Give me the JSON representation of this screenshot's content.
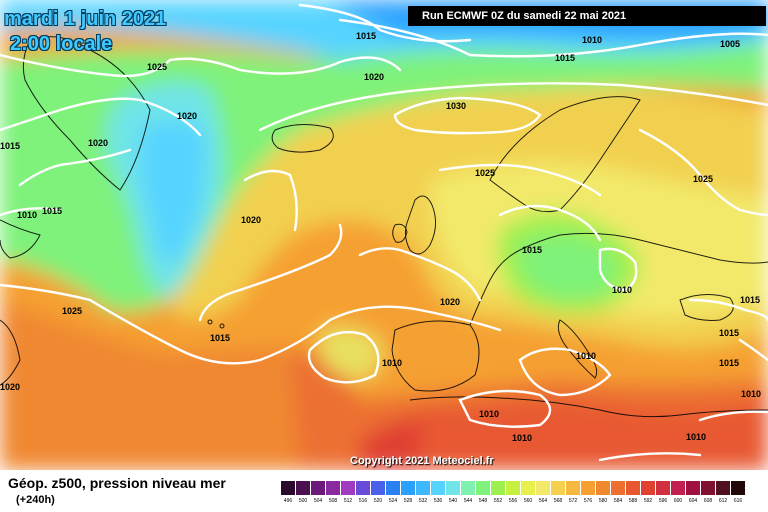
{
  "header": {
    "date": "mardi 1 juin 2021",
    "time": "2:00 locale",
    "run": "Run ECMWF 0Z du samedi 22 mai 2021"
  },
  "copyright": "Copyright 2021 Meteociel.fr",
  "footer": {
    "title": "Géop. z500, pression niveau mer",
    "subtitle": "(+240h)"
  },
  "map": {
    "pressure_labels": [
      "1015",
      "1010",
      "1005",
      "1015",
      "1025",
      "1020",
      "1030",
      "1020",
      "1020",
      "1025",
      "1015",
      "1010",
      "1015",
      "1020",
      "1025",
      "1015",
      "1015",
      "1020",
      "1010",
      "1020",
      "1010",
      "1010",
      "1010",
      "1025",
      "1015",
      "1015",
      "1015",
      "1010",
      "1010",
      "1010"
    ],
    "colors": {
      "ocean_north": "#2aa0ff",
      "low_blue": "#56d4ff",
      "green": "#7ef27a",
      "yellow": "#f2e96a",
      "orange": "#f5a030",
      "red": "#e85030",
      "isobar": "#ffffff",
      "coast": "#000000"
    }
  },
  "scale": {
    "labels": [
      "496",
      "500",
      "504",
      "508",
      "512",
      "516",
      "520",
      "524",
      "528",
      "532",
      "536",
      "540",
      "544",
      "548",
      "552",
      "556",
      "560",
      "564",
      "568",
      "572",
      "576",
      "580",
      "584",
      "588",
      "592",
      "596",
      "600",
      "604",
      "608",
      "612",
      "616"
    ],
    "colors": [
      "#2a0a2a",
      "#4a1050",
      "#6a1a78",
      "#8a2aa0",
      "#a03cc0",
      "#6a4ad8",
      "#4a60e8",
      "#2a80f0",
      "#2aa0ff",
      "#40b8ff",
      "#56d4ff",
      "#70e4e8",
      "#7ef0b0",
      "#7ef27a",
      "#9ef050",
      "#c8f040",
      "#e8f050",
      "#f2e96a",
      "#f5d050",
      "#f5b840",
      "#f5a030",
      "#f08830",
      "#ec7030",
      "#e85830",
      "#e04030",
      "#d03040",
      "#c02050",
      "#a01040",
      "#801030",
      "#501020",
      "#200808"
    ]
  }
}
